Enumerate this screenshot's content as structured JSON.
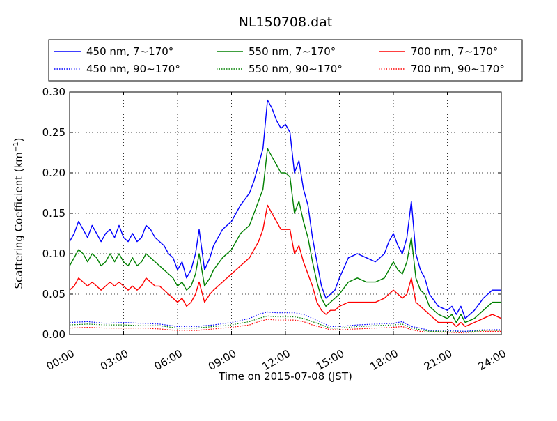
{
  "chart_data": {
    "type": "line",
    "title": "NL150708.dat",
    "xlabel": "Time on 2015-07-08 (JST)",
    "ylabel": "Scattering Coefficient (km",
    "ylabel_sup": "−1",
    "ylabel_close": ")",
    "xlim": [
      0,
      24
    ],
    "ylim": [
      0,
      0.3
    ],
    "grid": true,
    "legend_position": "top",
    "x_ticks": [
      {
        "value": 0,
        "label": "00:00"
      },
      {
        "value": 3,
        "label": "03:00"
      },
      {
        "value": 6,
        "label": "06:00"
      },
      {
        "value": 9,
        "label": "09:00"
      },
      {
        "value": 12,
        "label": "12:00"
      },
      {
        "value": 15,
        "label": "15:00"
      },
      {
        "value": 18,
        "label": "18:00"
      },
      {
        "value": 21,
        "label": "21:00"
      },
      {
        "value": 24,
        "label": "24:00"
      }
    ],
    "y_ticks": [
      {
        "value": 0,
        "label": "0.00"
      },
      {
        "value": 0.05,
        "label": "0.05"
      },
      {
        "value": 0.1,
        "label": "0.10"
      },
      {
        "value": 0.15,
        "label": "0.15"
      },
      {
        "value": 0.2,
        "label": "0.20"
      },
      {
        "value": 0.25,
        "label": "0.25"
      },
      {
        "value": 0.3,
        "label": "0.30"
      }
    ],
    "series": [
      {
        "name": "450 nm, 7∼170°",
        "color": "#0000ff",
        "style": "solid",
        "x": [
          0,
          0.25,
          0.5,
          0.75,
          1,
          1.25,
          1.5,
          1.75,
          2,
          2.25,
          2.5,
          2.75,
          3,
          3.25,
          3.5,
          3.75,
          4,
          4.25,
          4.5,
          4.75,
          5,
          5.25,
          5.5,
          5.75,
          6,
          6.25,
          6.5,
          6.75,
          7,
          7.2,
          7.5,
          7.8,
          8,
          8.5,
          9,
          9.5,
          10,
          10.25,
          10.5,
          10.75,
          11,
          11.25,
          11.5,
          11.75,
          12,
          12.25,
          12.5,
          12.75,
          13,
          13.25,
          13.5,
          13.75,
          14,
          14.25,
          14.5,
          14.75,
          15,
          15.5,
          16,
          16.5,
          17,
          17.5,
          17.75,
          18,
          18.25,
          18.5,
          18.75,
          19,
          19.25,
          19.5,
          19.75,
          20,
          20.5,
          21,
          21.25,
          21.5,
          21.75,
          22,
          22.5,
          23,
          23.5,
          24
        ],
        "y": [
          0.115,
          0.125,
          0.14,
          0.13,
          0.12,
          0.135,
          0.125,
          0.115,
          0.125,
          0.13,
          0.12,
          0.135,
          0.12,
          0.115,
          0.125,
          0.115,
          0.12,
          0.135,
          0.13,
          0.12,
          0.115,
          0.11,
          0.1,
          0.095,
          0.08,
          0.09,
          0.07,
          0.08,
          0.1,
          0.13,
          0.08,
          0.095,
          0.11,
          0.13,
          0.14,
          0.16,
          0.175,
          0.19,
          0.21,
          0.23,
          0.29,
          0.28,
          0.265,
          0.255,
          0.26,
          0.25,
          0.2,
          0.215,
          0.18,
          0.16,
          0.12,
          0.09,
          0.06,
          0.045,
          0.05,
          0.055,
          0.07,
          0.095,
          0.1,
          0.095,
          0.09,
          0.1,
          0.115,
          0.125,
          0.11,
          0.1,
          0.12,
          0.165,
          0.1,
          0.08,
          0.07,
          0.05,
          0.035,
          0.03,
          0.035,
          0.025,
          0.035,
          0.02,
          0.03,
          0.045,
          0.055,
          0.055
        ]
      },
      {
        "name": "550 nm, 7∼170°",
        "color": "#008000",
        "style": "solid",
        "x": [
          0,
          0.25,
          0.5,
          0.75,
          1,
          1.25,
          1.5,
          1.75,
          2,
          2.25,
          2.5,
          2.75,
          3,
          3.25,
          3.5,
          3.75,
          4,
          4.25,
          4.5,
          4.75,
          5,
          5.25,
          5.5,
          5.75,
          6,
          6.25,
          6.5,
          6.75,
          7,
          7.2,
          7.5,
          7.8,
          8,
          8.5,
          9,
          9.5,
          10,
          10.25,
          10.5,
          10.75,
          11,
          11.25,
          11.5,
          11.75,
          12,
          12.25,
          12.5,
          12.75,
          13,
          13.25,
          13.5,
          13.75,
          14,
          14.25,
          14.5,
          14.75,
          15,
          15.5,
          16,
          16.5,
          17,
          17.5,
          17.75,
          18,
          18.25,
          18.5,
          18.75,
          19,
          19.25,
          19.5,
          19.75,
          20,
          20.5,
          21,
          21.25,
          21.5,
          21.75,
          22,
          22.5,
          23,
          23.5,
          24
        ],
        "y": [
          0.085,
          0.095,
          0.105,
          0.1,
          0.09,
          0.1,
          0.095,
          0.085,
          0.09,
          0.1,
          0.09,
          0.1,
          0.09,
          0.085,
          0.095,
          0.085,
          0.09,
          0.1,
          0.095,
          0.09,
          0.085,
          0.08,
          0.075,
          0.07,
          0.06,
          0.065,
          0.055,
          0.06,
          0.075,
          0.1,
          0.06,
          0.07,
          0.08,
          0.095,
          0.105,
          0.125,
          0.135,
          0.15,
          0.165,
          0.18,
          0.23,
          0.22,
          0.21,
          0.2,
          0.2,
          0.195,
          0.15,
          0.165,
          0.14,
          0.12,
          0.09,
          0.065,
          0.045,
          0.035,
          0.04,
          0.045,
          0.05,
          0.065,
          0.07,
          0.065,
          0.065,
          0.07,
          0.08,
          0.09,
          0.08,
          0.075,
          0.09,
          0.12,
          0.07,
          0.055,
          0.05,
          0.035,
          0.025,
          0.02,
          0.025,
          0.015,
          0.025,
          0.015,
          0.02,
          0.03,
          0.04,
          0.04
        ]
      },
      {
        "name": "700 nm, 7∼170°",
        "color": "#ff0000",
        "style": "solid",
        "x": [
          0,
          0.25,
          0.5,
          0.75,
          1,
          1.25,
          1.5,
          1.75,
          2,
          2.25,
          2.5,
          2.75,
          3,
          3.25,
          3.5,
          3.75,
          4,
          4.25,
          4.5,
          4.75,
          5,
          5.25,
          5.5,
          5.75,
          6,
          6.25,
          6.5,
          6.75,
          7,
          7.2,
          7.5,
          7.8,
          8,
          8.5,
          9,
          9.5,
          10,
          10.25,
          10.5,
          10.75,
          11,
          11.25,
          11.5,
          11.75,
          12,
          12.25,
          12.5,
          12.75,
          13,
          13.25,
          13.5,
          13.75,
          14,
          14.25,
          14.5,
          14.75,
          15,
          15.5,
          16,
          16.5,
          17,
          17.5,
          17.75,
          18,
          18.25,
          18.5,
          18.75,
          19,
          19.25,
          19.5,
          19.75,
          20,
          20.5,
          21,
          21.25,
          21.5,
          21.75,
          22,
          22.5,
          23,
          23.5,
          24
        ],
        "y": [
          0.055,
          0.06,
          0.07,
          0.065,
          0.06,
          0.065,
          0.06,
          0.055,
          0.06,
          0.065,
          0.06,
          0.065,
          0.06,
          0.055,
          0.06,
          0.055,
          0.06,
          0.07,
          0.065,
          0.06,
          0.06,
          0.055,
          0.05,
          0.045,
          0.04,
          0.045,
          0.035,
          0.04,
          0.05,
          0.065,
          0.04,
          0.05,
          0.055,
          0.065,
          0.075,
          0.085,
          0.095,
          0.105,
          0.115,
          0.13,
          0.16,
          0.15,
          0.14,
          0.13,
          0.13,
          0.13,
          0.1,
          0.11,
          0.09,
          0.075,
          0.06,
          0.04,
          0.03,
          0.025,
          0.03,
          0.03,
          0.035,
          0.04,
          0.04,
          0.04,
          0.04,
          0.045,
          0.05,
          0.055,
          0.05,
          0.045,
          0.05,
          0.07,
          0.04,
          0.035,
          0.03,
          0.025,
          0.015,
          0.015,
          0.015,
          0.01,
          0.015,
          0.01,
          0.015,
          0.02,
          0.025,
          0.02
        ]
      },
      {
        "name": "450 nm, 90∼170°",
        "color": "#0000ff",
        "style": "dotted",
        "x": [
          0,
          1,
          2,
          3,
          4,
          5,
          6,
          7,
          8,
          9,
          10,
          10.5,
          11,
          11.5,
          12,
          12.5,
          13,
          13.5,
          14,
          14.5,
          15,
          16,
          17,
          18,
          18.5,
          19,
          19.5,
          20,
          21,
          22,
          23,
          24
        ],
        "y": [
          0.015,
          0.016,
          0.014,
          0.015,
          0.014,
          0.013,
          0.01,
          0.01,
          0.012,
          0.015,
          0.02,
          0.025,
          0.028,
          0.027,
          0.027,
          0.027,
          0.025,
          0.02,
          0.015,
          0.01,
          0.01,
          0.012,
          0.013,
          0.014,
          0.016,
          0.01,
          0.008,
          0.005,
          0.005,
          0.004,
          0.006,
          0.006
        ]
      },
      {
        "name": "550 nm, 90∼170°",
        "color": "#008000",
        "style": "dotted",
        "x": [
          0,
          1,
          2,
          3,
          4,
          5,
          6,
          7,
          8,
          9,
          10,
          10.5,
          11,
          11.5,
          12,
          12.5,
          13,
          13.5,
          14,
          14.5,
          15,
          16,
          17,
          18,
          18.5,
          19,
          19.5,
          20,
          21,
          22,
          23,
          24
        ],
        "y": [
          0.012,
          0.013,
          0.012,
          0.012,
          0.011,
          0.011,
          0.008,
          0.008,
          0.01,
          0.012,
          0.016,
          0.02,
          0.023,
          0.022,
          0.022,
          0.022,
          0.02,
          0.016,
          0.012,
          0.008,
          0.008,
          0.01,
          0.011,
          0.012,
          0.013,
          0.008,
          0.006,
          0.004,
          0.004,
          0.003,
          0.005,
          0.005
        ]
      },
      {
        "name": "700 nm, 90∼170°",
        "color": "#ff0000",
        "style": "dotted",
        "x": [
          0,
          1,
          2,
          3,
          4,
          5,
          6,
          7,
          8,
          9,
          10,
          10.5,
          11,
          11.5,
          12,
          12.5,
          13,
          13.5,
          14,
          14.5,
          15,
          16,
          17,
          18,
          18.5,
          19,
          19.5,
          20,
          21,
          22,
          23,
          24
        ],
        "y": [
          0.008,
          0.009,
          0.008,
          0.008,
          0.008,
          0.007,
          0.005,
          0.005,
          0.007,
          0.009,
          0.012,
          0.016,
          0.019,
          0.018,
          0.018,
          0.018,
          0.016,
          0.012,
          0.009,
          0.006,
          0.006,
          0.007,
          0.008,
          0.009,
          0.01,
          0.006,
          0.004,
          0.003,
          0.003,
          0.002,
          0.004,
          0.004
        ]
      }
    ]
  }
}
